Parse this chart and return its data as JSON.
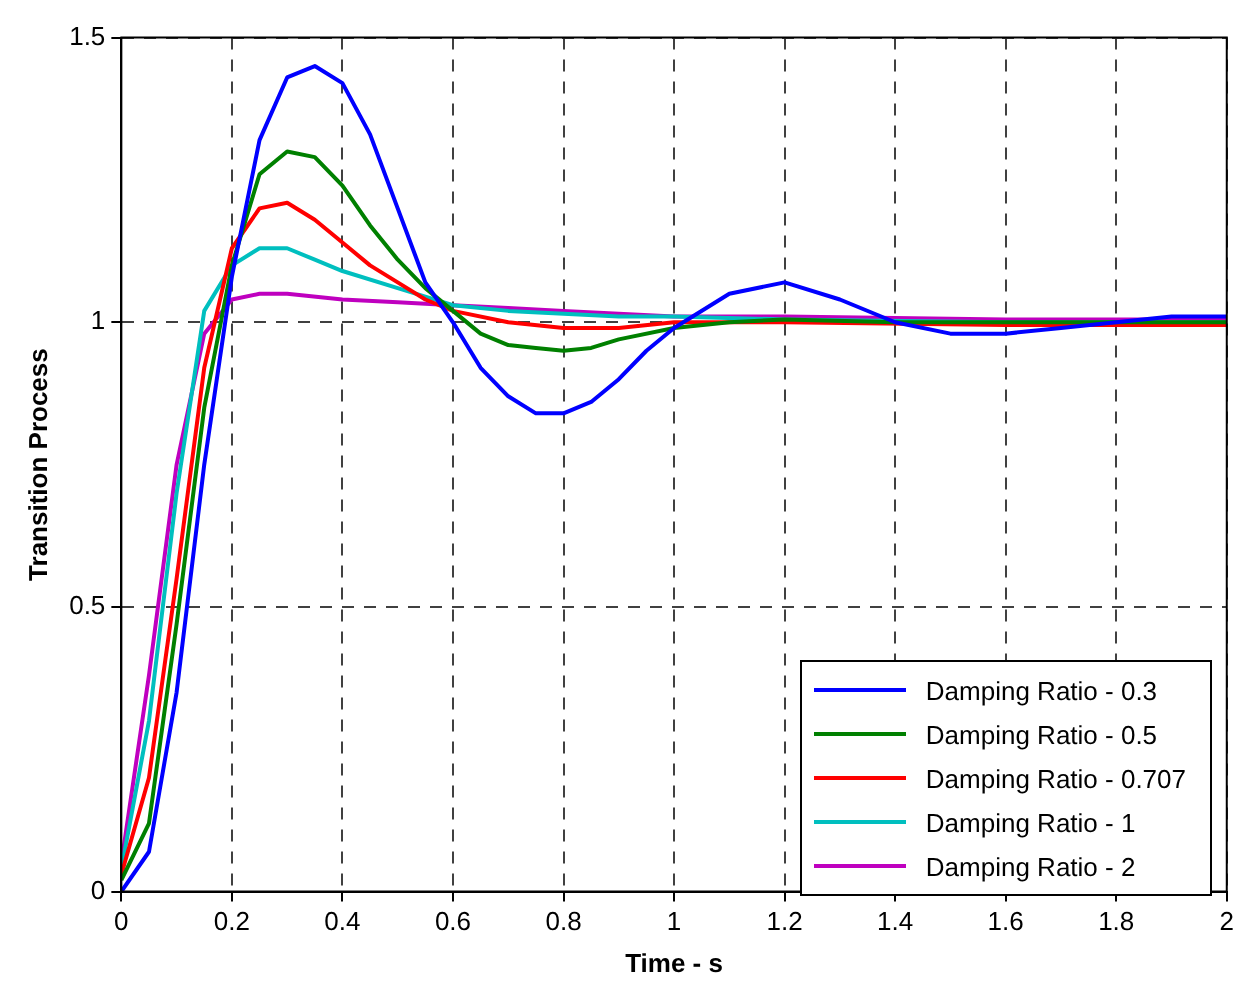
{
  "chart_data": {
    "type": "line",
    "xlabel": "Time - s",
    "ylabel": "Transition Process",
    "xlim": [
      0,
      2
    ],
    "xticks": [
      0,
      0.2,
      0.4,
      0.6,
      0.8,
      1,
      1.2,
      1.4,
      1.6,
      1.8,
      2
    ],
    "ylim": [
      0,
      1.5
    ],
    "yticks": [
      0,
      0.5,
      1,
      1.5
    ],
    "grid": true,
    "legend": "bottom right",
    "marker": "none",
    "line_style": "solid",
    "series": [
      {
        "name": "Damping Ratio - 0.3",
        "color": "#0000ff",
        "x": [
          0,
          0.05,
          0.1,
          0.15,
          0.2,
          0.25,
          0.3,
          0.35,
          0.4,
          0.45,
          0.5,
          0.55,
          0.6,
          0.65,
          0.7,
          0.75,
          0.8,
          0.85,
          0.9,
          0.95,
          1,
          1.1,
          1.2,
          1.3,
          1.4,
          1.5,
          1.6,
          1.7,
          1.8,
          1.9,
          2
        ],
        "values": [
          0,
          0.07,
          0.35,
          0.75,
          1.08,
          1.32,
          1.43,
          1.45,
          1.42,
          1.33,
          1.2,
          1.07,
          1.0,
          0.92,
          0.87,
          0.84,
          0.84,
          0.86,
          0.9,
          0.95,
          0.99,
          1.05,
          1.07,
          1.04,
          1.0,
          0.98,
          0.98,
          0.99,
          1.0,
          1.01,
          1.01
        ]
      },
      {
        "name": "Damping Ratio - 0.5",
        "color": "#008000",
        "x": [
          0,
          0.05,
          0.1,
          0.15,
          0.2,
          0.25,
          0.3,
          0.35,
          0.4,
          0.45,
          0.5,
          0.55,
          0.6,
          0.65,
          0.7,
          0.75,
          0.8,
          0.85,
          0.9,
          1,
          1.1,
          1.2,
          1.4,
          1.6,
          2
        ],
        "values": [
          0.02,
          0.12,
          0.47,
          0.85,
          1.1,
          1.26,
          1.3,
          1.29,
          1.24,
          1.17,
          1.11,
          1.06,
          1.02,
          0.98,
          0.96,
          0.955,
          0.95,
          0.955,
          0.97,
          0.99,
          1.0,
          1.005,
          1.0,
          1.0,
          1.0
        ]
      },
      {
        "name": "Damping Ratio - 0.707",
        "color": "#ff0000",
        "x": [
          0,
          0.05,
          0.1,
          0.15,
          0.2,
          0.25,
          0.3,
          0.35,
          0.4,
          0.45,
          0.5,
          0.55,
          0.6,
          0.7,
          0.8,
          0.9,
          1,
          1.2,
          1.6,
          2
        ],
        "values": [
          0.03,
          0.2,
          0.55,
          0.92,
          1.13,
          1.2,
          1.21,
          1.18,
          1.14,
          1.1,
          1.07,
          1.04,
          1.02,
          1.0,
          0.99,
          0.99,
          1.0,
          1.0,
          0.995,
          0.995
        ]
      },
      {
        "name": "Damping Ratio - 1",
        "color": "#00bfbf",
        "x": [
          0,
          0.05,
          0.1,
          0.15,
          0.2,
          0.25,
          0.3,
          0.35,
          0.4,
          0.5,
          0.6,
          0.7,
          0.8,
          0.9,
          1,
          1.2,
          1.6,
          2
        ],
        "values": [
          0.04,
          0.3,
          0.7,
          1.02,
          1.1,
          1.13,
          1.13,
          1.11,
          1.09,
          1.06,
          1.03,
          1.02,
          1.015,
          1.01,
          1.01,
          1.005,
          1.0,
          1.0
        ]
      },
      {
        "name": "Damping Ratio - 2",
        "color": "#bf00bf",
        "x": [
          0,
          0.05,
          0.1,
          0.15,
          0.2,
          0.25,
          0.3,
          0.4,
          0.5,
          0.6,
          0.7,
          0.8,
          0.9,
          1,
          1.2,
          1.6,
          2
        ],
        "values": [
          0.05,
          0.38,
          0.75,
          0.98,
          1.04,
          1.05,
          1.05,
          1.04,
          1.035,
          1.03,
          1.025,
          1.02,
          1.015,
          1.01,
          1.01,
          1.005,
          1.005
        ]
      }
    ]
  }
}
